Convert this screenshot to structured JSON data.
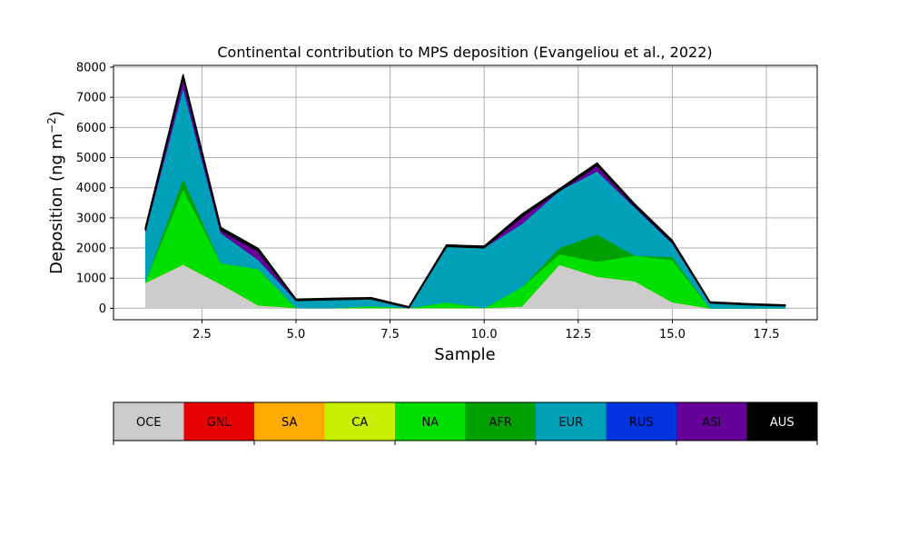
{
  "chart_data": {
    "type": "area",
    "title": "Continental contribution to MPS deposition (Evangeliou et al., 2022)",
    "xlabel": "Sample",
    "ylabel": "Deposition (ng m",
    "ylabel_sup": "−2",
    "ylabel_close": ")",
    "xlim": [
      0.15,
      18.85
    ],
    "ylim": [
      -380,
      8060
    ],
    "x_ticks": [
      2.5,
      5.0,
      7.5,
      10.0,
      12.5,
      15.0,
      17.5
    ],
    "x_tick_labels": [
      "2.5",
      "5.0",
      "7.5",
      "10.0",
      "12.5",
      "15.0",
      "17.5"
    ],
    "y_ticks": [
      0,
      1000,
      2000,
      3000,
      4000,
      5000,
      6000,
      7000,
      8000
    ],
    "y_tick_labels": [
      "0",
      "1000",
      "2000",
      "3000",
      "4000",
      "5000",
      "6000",
      "7000",
      "8000"
    ],
    "grid": true,
    "x": [
      1,
      2,
      3,
      4,
      5,
      6,
      7,
      8,
      9,
      10,
      11,
      12,
      13,
      14,
      15,
      16,
      17,
      18
    ],
    "series": [
      {
        "name": "OCE",
        "color": "#cccccc",
        "values": [
          850,
          1450,
          800,
          100,
          10,
          10,
          10,
          10,
          10,
          10,
          60,
          1450,
          1050,
          900,
          200,
          0,
          0,
          0
        ]
      },
      {
        "name": "GNL",
        "color": "#e60000",
        "values": [
          0,
          0,
          0,
          0,
          0,
          0,
          0,
          0,
          0,
          0,
          0,
          0,
          0,
          0,
          0,
          0,
          0,
          0
        ]
      },
      {
        "name": "SA",
        "color": "#ffaa00",
        "values": [
          0,
          0,
          0,
          0,
          0,
          0,
          0,
          0,
          0,
          0,
          0,
          0,
          0,
          0,
          0,
          0,
          0,
          0
        ]
      },
      {
        "name": "CA",
        "color": "#c8f000",
        "values": [
          0,
          0,
          0,
          0,
          0,
          0,
          0,
          0,
          0,
          0,
          0,
          0,
          0,
          0,
          0,
          0,
          0,
          0
        ]
      },
      {
        "name": "NA",
        "color": "#00e000",
        "values": [
          50,
          2500,
          700,
          1200,
          0,
          0,
          60,
          0,
          190,
          0,
          640,
          350,
          500,
          850,
          1400,
          0,
          0,
          0
        ]
      },
      {
        "name": "AFR",
        "color": "#00a000",
        "values": [
          0,
          350,
          0,
          0,
          0,
          0,
          0,
          0,
          0,
          0,
          0,
          200,
          900,
          0,
          100,
          0,
          0,
          0
        ]
      },
      {
        "name": "EUR",
        "color": "#00a0b8",
        "values": [
          1650,
          3000,
          1000,
          300,
          250,
          280,
          240,
          10,
          1850,
          2000,
          2100,
          1900,
          2100,
          1600,
          450,
          180,
          120,
          80
        ]
      },
      {
        "name": "RUS",
        "color": "#0033dd",
        "values": [
          0,
          50,
          0,
          0,
          0,
          0,
          0,
          0,
          0,
          0,
          0,
          0,
          0,
          0,
          0,
          0,
          0,
          0
        ]
      },
      {
        "name": "ASI",
        "color": "#660099",
        "values": [
          50,
          300,
          100,
          300,
          0,
          0,
          0,
          0,
          0,
          0,
          250,
          0,
          200,
          50,
          50,
          0,
          0,
          0
        ]
      },
      {
        "name": "AUS",
        "color": "#000000",
        "values": [
          80,
          100,
          80,
          80,
          40,
          40,
          40,
          30,
          50,
          50,
          70,
          60,
          70,
          60,
          50,
          30,
          30,
          30
        ]
      }
    ],
    "legend_placement": "bottom colorbar"
  }
}
